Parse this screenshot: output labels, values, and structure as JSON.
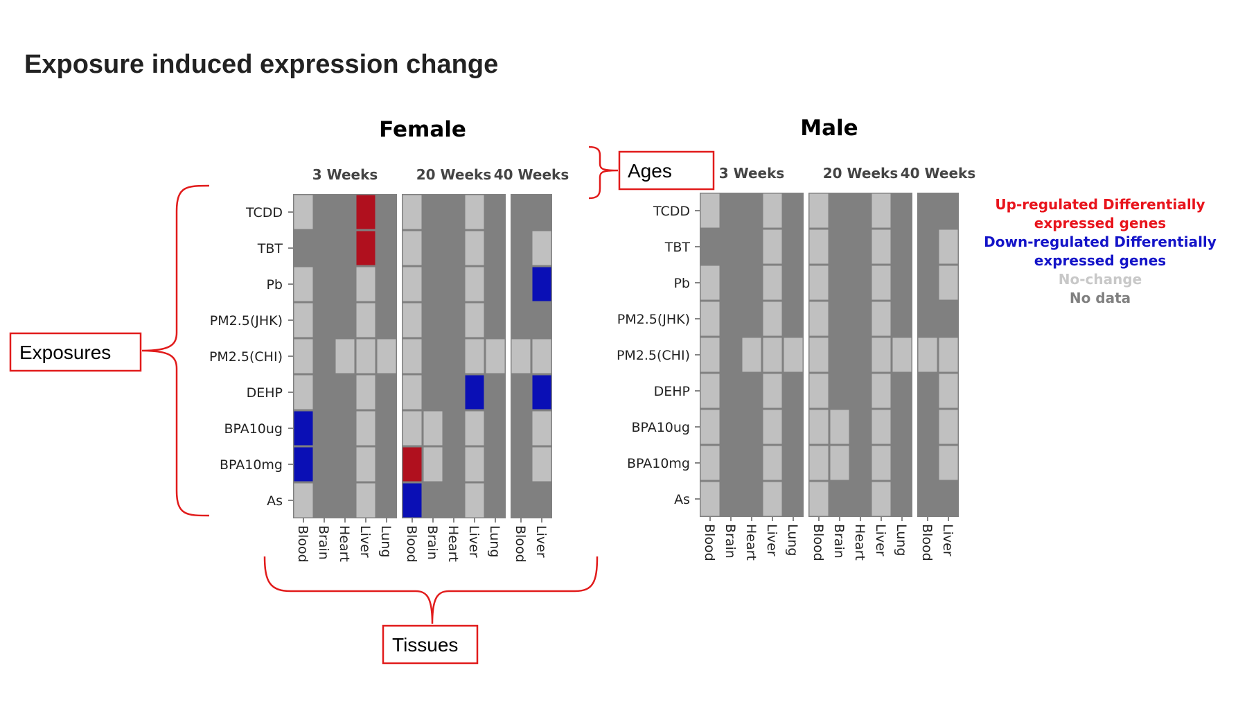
{
  "title": "Exposure induced expression change",
  "chart_data": {
    "type": "heatmap",
    "exposures": [
      "TCDD",
      "TBT",
      "Pb",
      "PM2.5(JHK)",
      "PM2.5(CHI)",
      "DEHP",
      "BPA10ug",
      "BPA10mg",
      "As"
    ],
    "status_codes": {
      "U": "up",
      "D": "down",
      "N": "no-change",
      "X": "no-data"
    },
    "status_colors": {
      "U": "#b0101e",
      "D": "#0a0fb5",
      "N": "#c0c0c0",
      "X": "#808080"
    },
    "panels": [
      {
        "sex": "Female",
        "ages": [
          {
            "label": "3 Weeks",
            "tissues": [
              "Blood",
              "Brain",
              "Heart",
              "Liver",
              "Lung"
            ],
            "grid": [
              "NXXUX",
              "XXXUX",
              "NXXNX",
              "NXXNX",
              "NXNNN",
              "NXXNX",
              "DXXNX",
              "DXXNX",
              "NXXNX"
            ]
          },
          {
            "label": "20 Weeks",
            "tissues": [
              "Blood",
              "Brain",
              "Heart",
              "Liver",
              "Lung"
            ],
            "grid": [
              "NXXNX",
              "NXXNX",
              "NXXNX",
              "NXXNX",
              "NXXNN",
              "NXXDX",
              "NNXNX",
              "UNXNX",
              "DXXNX"
            ]
          },
          {
            "label": "40 Weeks",
            "tissues": [
              "Blood",
              "Liver"
            ],
            "grid": [
              "XX",
              "XN",
              "XD",
              "XX",
              "NN",
              "XD",
              "XN",
              "XN",
              "XX"
            ]
          }
        ]
      },
      {
        "sex": "Male",
        "ages": [
          {
            "label": "3 Weeks",
            "tissues": [
              "Blood",
              "Brain",
              "Heart",
              "Liver",
              "Lung"
            ],
            "grid": [
              "NXXNX",
              "XXXNX",
              "NXXNX",
              "NXXNX",
              "NXNNN",
              "NXXNX",
              "NXXNX",
              "NXXNX",
              "NXXNX"
            ]
          },
          {
            "label": "20 Weeks",
            "tissues": [
              "Blood",
              "Brain",
              "Heart",
              "Liver",
              "Lung"
            ],
            "grid": [
              "NXXNX",
              "NXXNX",
              "NXXNX",
              "NXXNX",
              "NXXNN",
              "NXXNX",
              "NNXNX",
              "NNXNX",
              "NXXNX"
            ]
          },
          {
            "label": "40 Weeks",
            "tissues": [
              "Blood",
              "Liver"
            ],
            "grid": [
              "XX",
              "XN",
              "XN",
              "XX",
              "NN",
              "XN",
              "XN",
              "XN",
              "XX"
            ]
          }
        ]
      }
    ],
    "legend": [
      {
        "lines": [
          "Up-regulated Differentially",
          "expressed genes"
        ],
        "color": "#e8141c"
      },
      {
        "lines": [
          "Down-regulated Differentially",
          "expressed genes"
        ],
        "color": "#1414c8"
      },
      {
        "lines": [
          "No-change"
        ],
        "color": "#c8c8c8"
      },
      {
        "lines": [
          "No data"
        ],
        "color": "#808080"
      }
    ]
  },
  "annotations": {
    "exposures": "Exposures",
    "ages": "Ages",
    "tissues": "Tissues"
  }
}
